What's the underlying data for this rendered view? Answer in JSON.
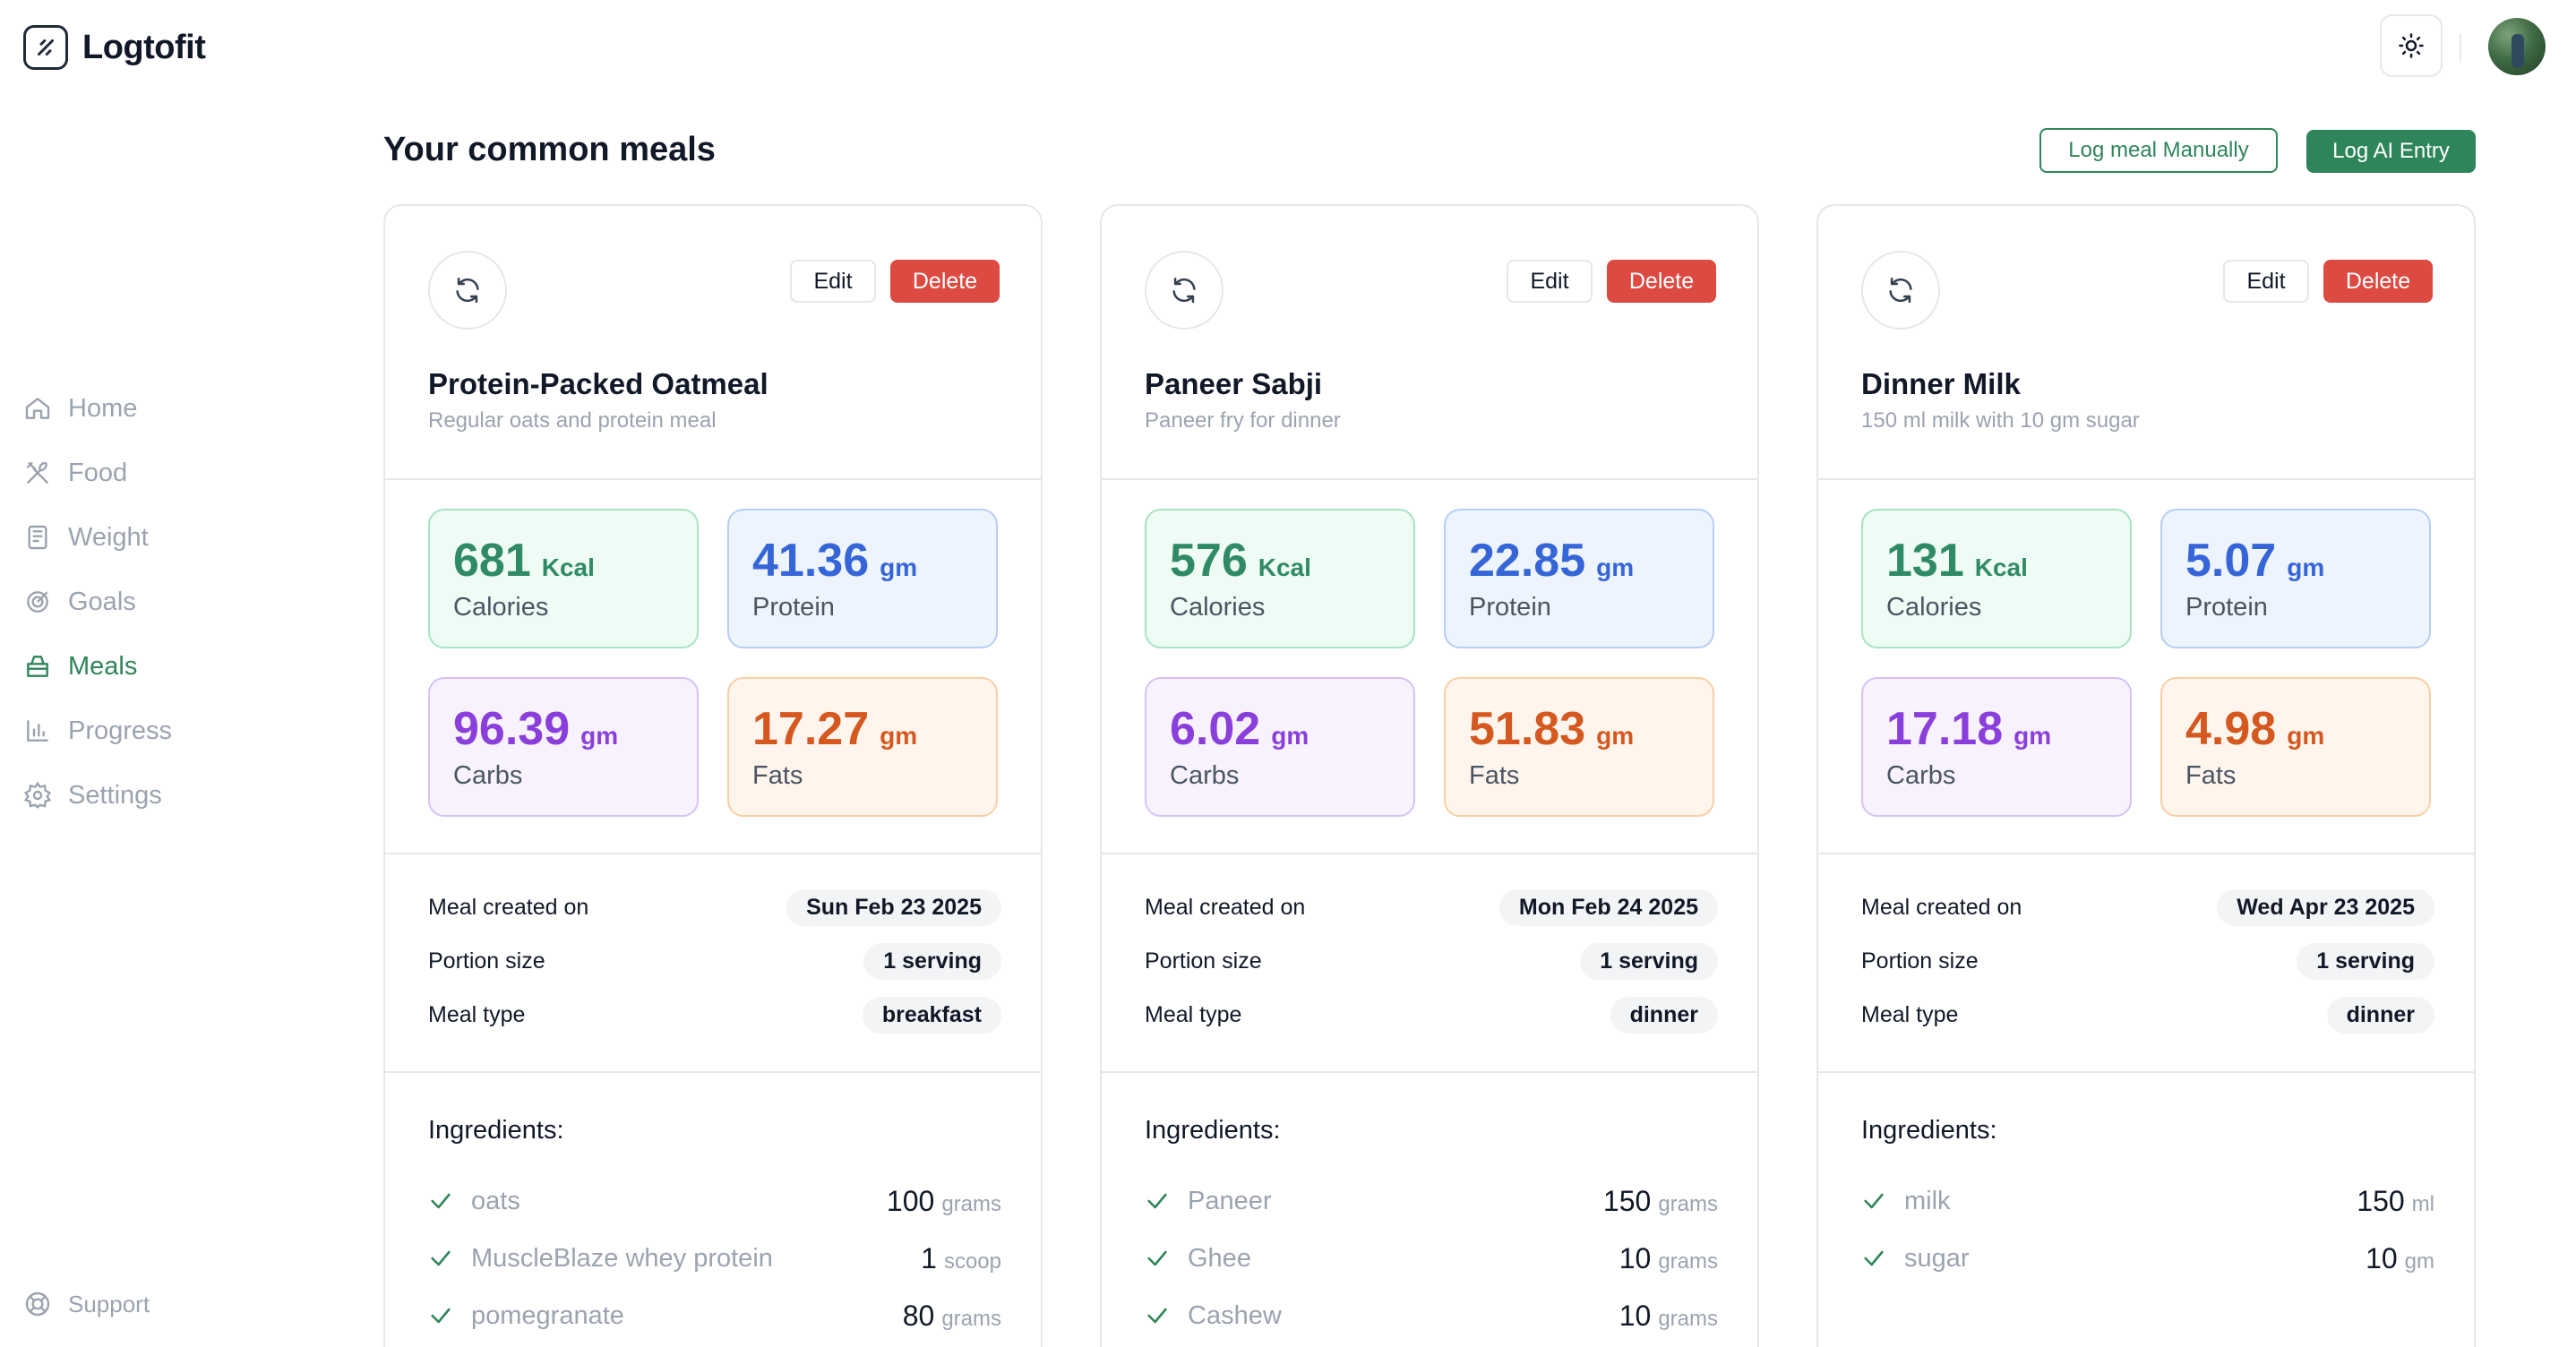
{
  "app": {
    "name": "Logtofit"
  },
  "sidebar": {
    "items": [
      {
        "label": "Home",
        "icon": "home-icon",
        "active": false
      },
      {
        "label": "Food",
        "icon": "utensils-icon",
        "active": false
      },
      {
        "label": "Weight",
        "icon": "scale-icon",
        "active": false
      },
      {
        "label": "Goals",
        "icon": "target-icon",
        "active": false
      },
      {
        "label": "Meals",
        "icon": "meal-box-icon",
        "active": true
      },
      {
        "label": "Progress",
        "icon": "bar-chart-icon",
        "active": false
      },
      {
        "label": "Settings",
        "icon": "gear-icon",
        "active": false
      }
    ],
    "support_label": "Support"
  },
  "header": {
    "title": "Your common meals",
    "log_manual_label": "Log meal Manually",
    "log_ai_label": "Log AI Entry"
  },
  "labels": {
    "edit": "Edit",
    "delete": "Delete",
    "calories": "Calories",
    "protein": "Protein",
    "carbs": "Carbs",
    "fats": "Fats",
    "kcal": "Kcal",
    "gm": "gm",
    "created": "Meal created on",
    "portion": "Portion size",
    "type": "Meal type",
    "ingredients": "Ingredients:"
  },
  "meals": [
    {
      "name": "Protein-Packed Oatmeal",
      "description": "Regular oats and protein meal",
      "calories": "681",
      "protein": "41.36",
      "carbs": "96.39",
      "fats": "17.27",
      "created": "Sun Feb 23 2025",
      "portion": "1 serving",
      "type": "breakfast",
      "ingredients": [
        {
          "name": "oats",
          "qty": "100",
          "unit": "grams"
        },
        {
          "name": "MuscleBlaze whey protein",
          "qty": "1",
          "unit": "scoop"
        },
        {
          "name": "pomegranate",
          "qty": "80",
          "unit": "grams"
        }
      ]
    },
    {
      "name": "Paneer Sabji",
      "description": "Paneer fry for dinner",
      "calories": "576",
      "protein": "22.85",
      "carbs": "6.02",
      "fats": "51.83",
      "created": "Mon Feb 24 2025",
      "portion": "1 serving",
      "type": "dinner",
      "ingredients": [
        {
          "name": "Paneer",
          "qty": "150",
          "unit": "grams"
        },
        {
          "name": "Ghee",
          "qty": "10",
          "unit": "grams"
        },
        {
          "name": "Cashew",
          "qty": "10",
          "unit": "grams"
        }
      ]
    },
    {
      "name": "Dinner Milk",
      "description": "150 ml milk with 10 gm sugar",
      "calories": "131",
      "protein": "5.07",
      "carbs": "17.18",
      "fats": "4.98",
      "created": "Wed Apr 23 2025",
      "portion": "1 serving",
      "type": "dinner",
      "ingredients": [
        {
          "name": "milk",
          "qty": "150",
          "unit": "ml"
        },
        {
          "name": "sugar",
          "qty": "10",
          "unit": "gm"
        }
      ]
    }
  ],
  "colors": {
    "brand_green": "#2f855a",
    "delete_red": "#dc4a42",
    "calories": "#2f8a68",
    "protein": "#3565d6",
    "carbs": "#8a3fdb",
    "fats": "#d4581f"
  }
}
